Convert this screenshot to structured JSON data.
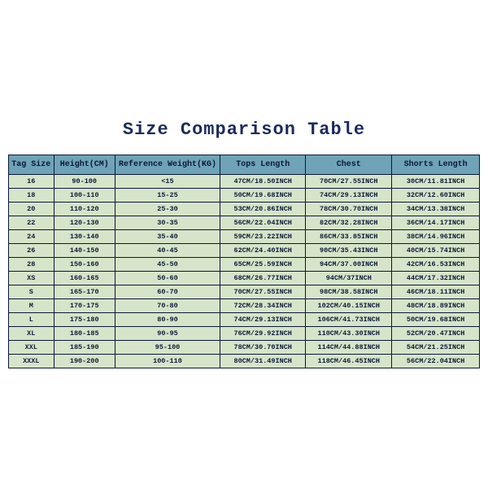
{
  "title": "Size Comparison Table",
  "table": {
    "columns": [
      "Tag Size",
      "Height(CM)",
      "Reference Weight(KG)",
      "Tops Length",
      "Chest",
      "Shorts Length"
    ],
    "rows": [
      [
        "16",
        "90-100",
        "<15",
        "47CM/18.50INCH",
        "70CM/27.55INCH",
        "30CM/11.81INCH"
      ],
      [
        "18",
        "100-110",
        "15-25",
        "50CM/19.68INCH",
        "74CM/29.13INCH",
        "32CM/12.60INCH"
      ],
      [
        "20",
        "110-120",
        "25-30",
        "53CM/20.86INCH",
        "78CM/30.70INCH",
        "34CM/13.38INCH"
      ],
      [
        "22",
        "120-130",
        "30-35",
        "56CM/22.04INCH",
        "82CM/32.28INCH",
        "36CM/14.17INCH"
      ],
      [
        "24",
        "130-140",
        "35-40",
        "59CM/23.22INCH",
        "86CM/33.85INCH",
        "38CM/14.96INCH"
      ],
      [
        "26",
        "140-150",
        "40-45",
        "62CM/24.40INCH",
        "90CM/35.43INCH",
        "40CM/15.74INCH"
      ],
      [
        "28",
        "150-160",
        "45-50",
        "65CM/25.59INCH",
        "94CM/37.00INCH",
        "42CM/16.53INCH"
      ],
      [
        "XS",
        "160-165",
        "50-60",
        "68CM/26.77INCH",
        "94CM/37INCH",
        "44CM/17.32INCH"
      ],
      [
        "S",
        "165-170",
        "60-70",
        "70CM/27.55INCH",
        "98CM/38.58INCH",
        "46CM/18.11INCH"
      ],
      [
        "M",
        "170-175",
        "70-80",
        "72CM/28.34INCH",
        "102CM/40.15INCH",
        "48CM/18.89INCH"
      ],
      [
        "L",
        "175-180",
        "80-90",
        "74CM/29.13INCH",
        "106CM/41.73INCH",
        "50CM/19.68INCH"
      ],
      [
        "XL",
        "180-185",
        "90-95",
        "76CM/29.92INCH",
        "110CM/43.30INCH",
        "52CM/20.47INCH"
      ],
      [
        "XXL",
        "185-190",
        "95-100",
        "78CM/30.70INCH",
        "114CM/44.88INCH",
        "54CM/21.25INCH"
      ],
      [
        "XXXL",
        "190-200",
        "100-110",
        "80CM/31.49INCH",
        "118CM/46.45INCH",
        "56CM/22.04INCH"
      ]
    ],
    "header_bg": "#6fa3b8",
    "cell_bg": "#d6e4c9",
    "border_color": "#0a1838",
    "text_color": "#0a1838"
  }
}
